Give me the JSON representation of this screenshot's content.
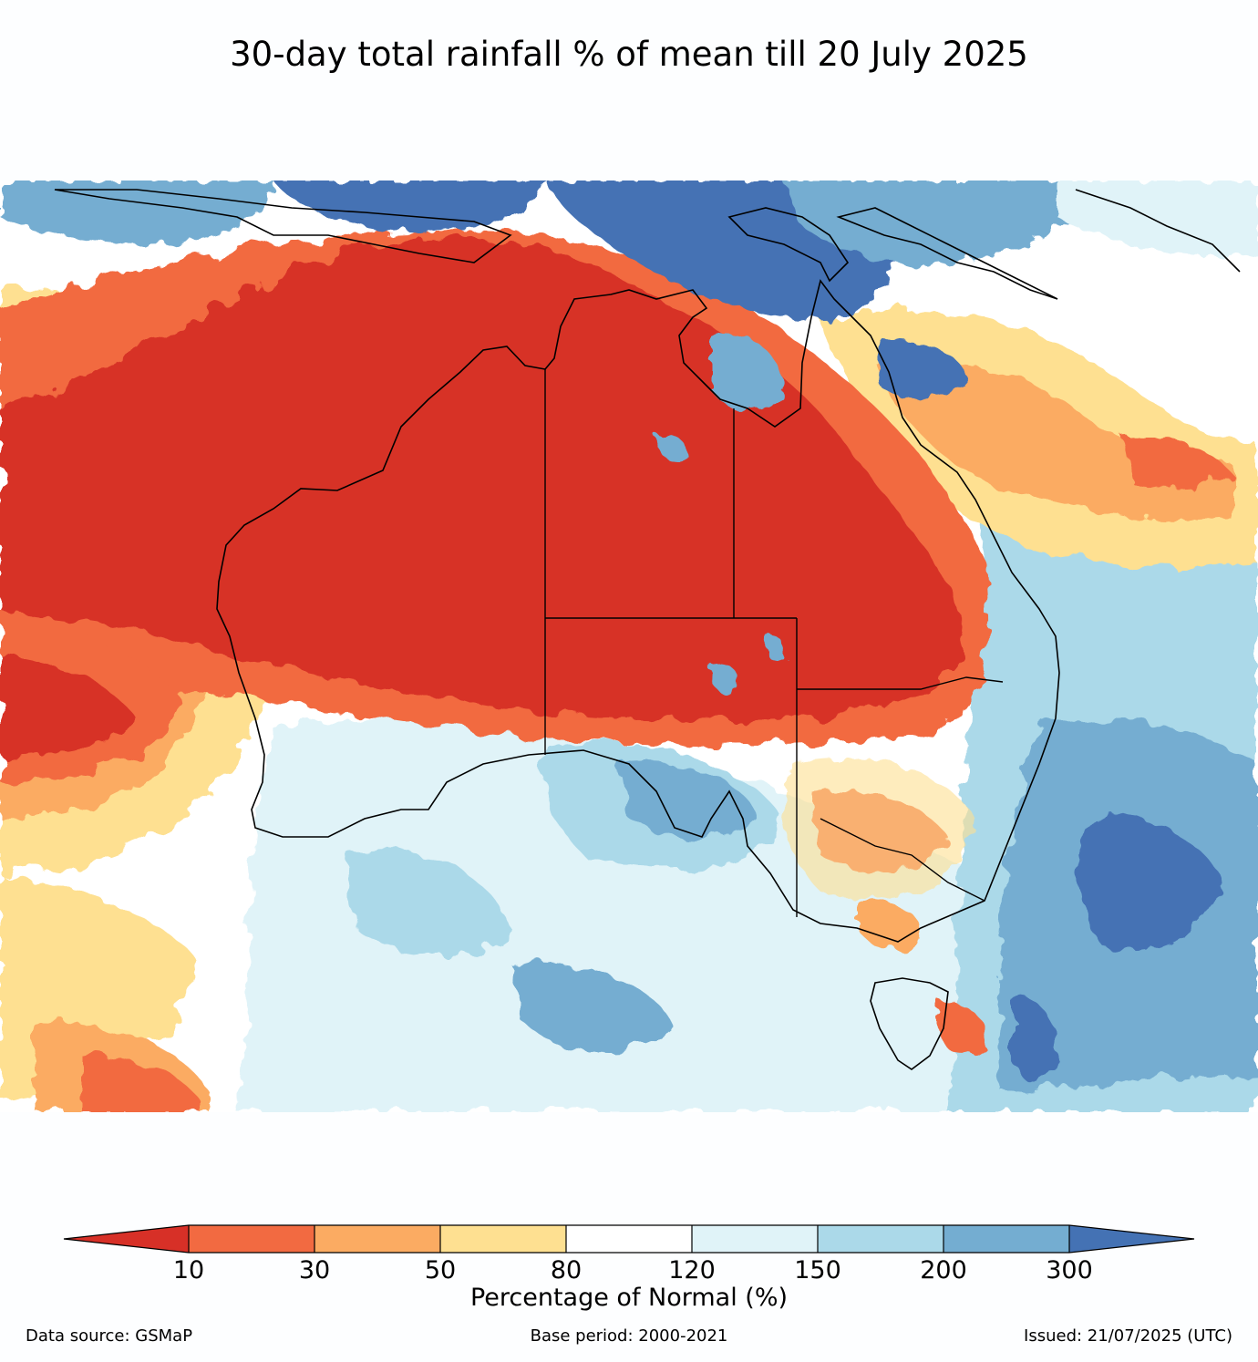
{
  "title": "30-day total rainfall % of mean till 20 July 2025",
  "legend": {
    "label": "Percentage of Normal (%)",
    "ticks": [
      "10",
      "30",
      "50",
      "80",
      "120",
      "150",
      "200",
      "300"
    ],
    "colors": {
      "lt10": "#d73027",
      "10_30": "#f26a41",
      "30_50": "#fbab62",
      "50_80": "#fee091",
      "80_120": "#ffffff",
      "120_150": "#e0f3f8",
      "150_200": "#abd9e9",
      "200_300": "#74add1",
      "gt300": "#4472b4"
    }
  },
  "footer": {
    "source": "Data source: GSMaP",
    "base_period": "Base period: 2000-2021",
    "issued": "Issued: 21/07/2025 (UTC)"
  }
}
